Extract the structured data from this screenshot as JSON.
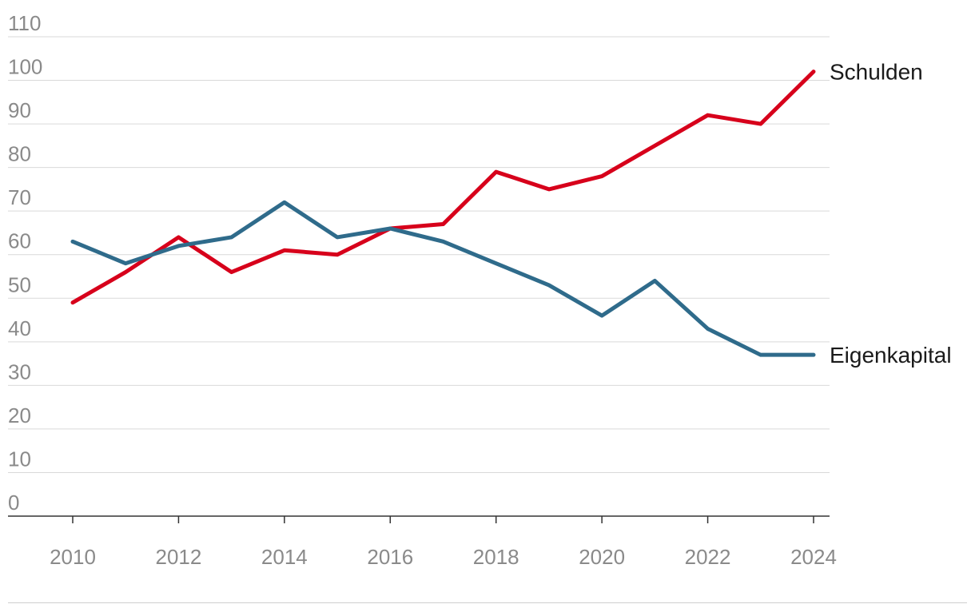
{
  "chart_data": {
    "type": "line",
    "title": "",
    "xlabel": "",
    "ylabel": "",
    "x": [
      2010,
      2011,
      2012,
      2013,
      2014,
      2015,
      2016,
      2017,
      2018,
      2019,
      2020,
      2021,
      2022,
      2023,
      2024
    ],
    "xticks": [
      "2010",
      "2012",
      "2014",
      "2016",
      "2018",
      "2020",
      "2022",
      "2024"
    ],
    "yticks": [
      "0",
      "10",
      "20",
      "30",
      "40",
      "50",
      "60",
      "70",
      "80",
      "90",
      "100",
      "110"
    ],
    "ylim": [
      0,
      110
    ],
    "grid": true,
    "legend": "direct labels at line ends",
    "series": [
      {
        "name": "Schulden",
        "color": "#d7001b",
        "values": [
          49,
          56,
          64,
          56,
          61,
          60,
          66,
          67,
          79,
          75,
          78,
          85,
          92,
          90,
          102
        ]
      },
      {
        "name": "Eigenkapital",
        "color": "#2f6b8b",
        "values": [
          63,
          58,
          62,
          64,
          72,
          64,
          66,
          63,
          58,
          53,
          46,
          54,
          43,
          37,
          37
        ]
      }
    ]
  }
}
